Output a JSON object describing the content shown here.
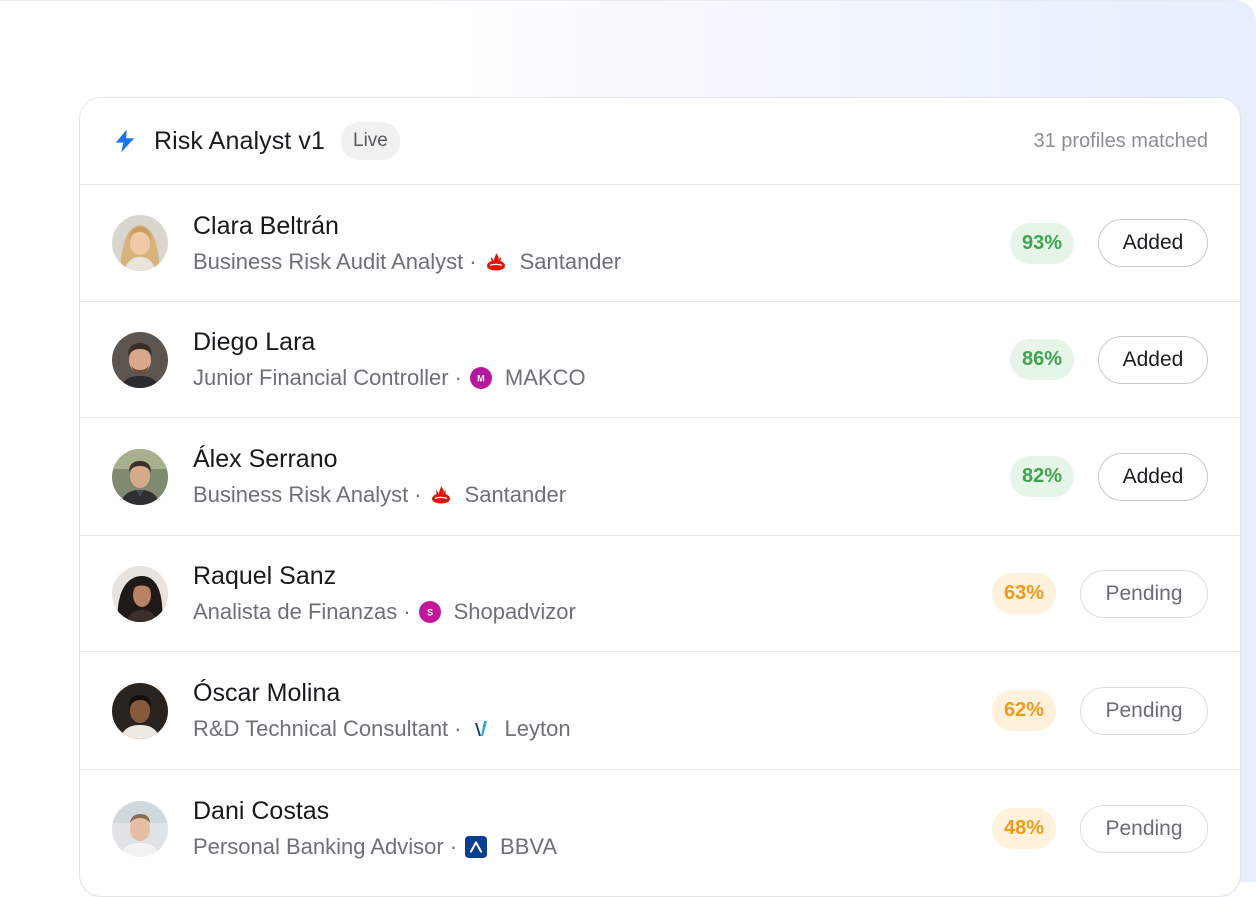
{
  "header": {
    "title": "Risk Analyst v1",
    "badge": "Live",
    "matched": "31 profiles matched",
    "bolt_icon": "lightning-bolt-icon",
    "accent_color": "#1a73e8"
  },
  "rows": [
    {
      "name": "Clara Beltrán",
      "role": "Business Risk Audit Analyst",
      "separator": "·",
      "company": "Santander",
      "company_logo": "santander-logo",
      "score": "93%",
      "score_level": "high",
      "action": "Added",
      "avatar_icon": "avatar-clara"
    },
    {
      "name": "Diego Lara",
      "role": "Junior Financial Controller",
      "separator": "·",
      "company": "MAKCO",
      "company_logo": "makco-logo",
      "logo_letter": "M",
      "score": "86%",
      "score_level": "high",
      "action": "Added",
      "avatar_icon": "avatar-diego"
    },
    {
      "name": "Álex Serrano",
      "role": "Business Risk Analyst",
      "separator": "·",
      "company": "Santander",
      "company_logo": "santander-logo",
      "score": "82%",
      "score_level": "high",
      "action": "Added",
      "avatar_icon": "avatar-alex"
    },
    {
      "name": "Raquel Sanz",
      "role": "Analista de Finanzas",
      "separator": "·",
      "company": "Shopadvizor",
      "company_logo": "shopadvizor-logo",
      "logo_letter": "S",
      "score": "63%",
      "score_level": "medium",
      "action": "Pending",
      "avatar_icon": "avatar-raquel"
    },
    {
      "name": "Óscar Molina",
      "role": "R&D Technical Consultant",
      "separator": "·",
      "company": "Leyton",
      "company_logo": "leyton-logo",
      "score": "62%",
      "score_level": "medium",
      "action": "Pending",
      "avatar_icon": "avatar-oscar"
    },
    {
      "name": "Dani Costas",
      "role": "Personal Banking Advisor",
      "separator": "·",
      "company": "BBVA",
      "company_logo": "bbva-logo",
      "score": "48%",
      "score_level": "medium",
      "action": "Pending",
      "avatar_icon": "avatar-dani"
    }
  ],
  "colors": {
    "score_high_bg": "#e6f5e8",
    "score_high_text": "#3fa352",
    "score_medium_bg": "#fff1dc",
    "score_medium_text": "#f09a1a",
    "santander_red": "#e3120b",
    "makco_purple": "#b5179e",
    "bbva_navy": "#0b3d91"
  }
}
